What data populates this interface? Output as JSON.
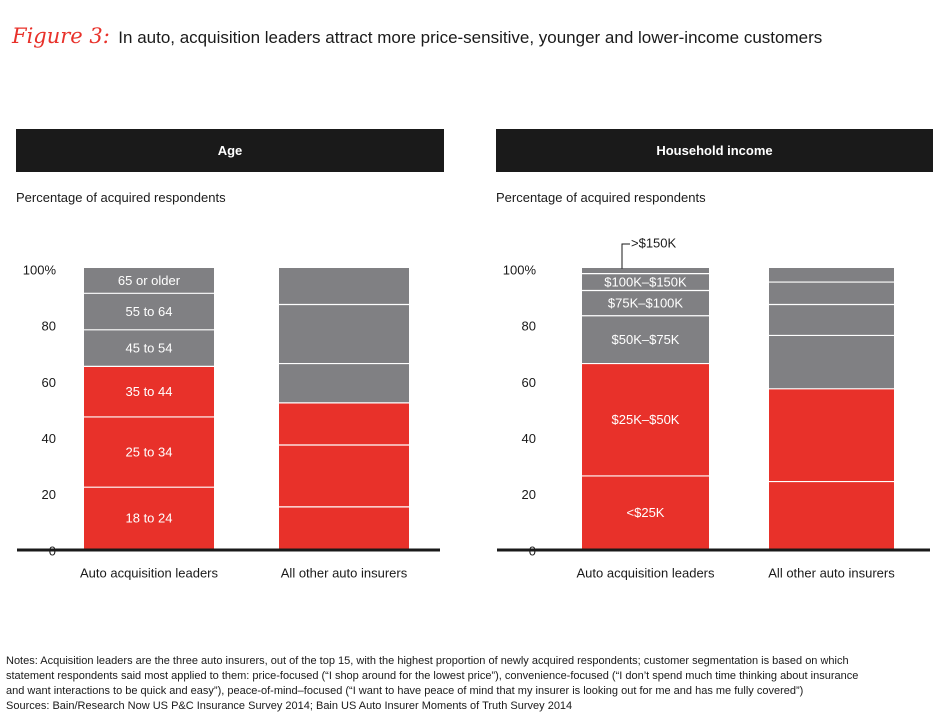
{
  "figure": {
    "label": "Figure 3:",
    "title": "In auto, acquisition leaders attract more price-sensitive, younger and lower-income customers"
  },
  "colors": {
    "red": "#e8312a",
    "gray": "#808083",
    "dark": "#1a1a1a"
  },
  "chart_data": [
    {
      "type": "bar",
      "stacked": true,
      "title": "Age",
      "ylabel": "Percentage of acquired respondents",
      "ylim": [
        0,
        100
      ],
      "yticks": [
        "0",
        "20",
        "40",
        "60",
        "80",
        "100%"
      ],
      "categories": [
        "Auto acquisition leaders",
        "All other auto insurers"
      ],
      "series": [
        {
          "name": "18 to 24",
          "color": "red",
          "values": [
            22,
            15
          ]
        },
        {
          "name": "25 to 34",
          "color": "red",
          "values": [
            25,
            22
          ]
        },
        {
          "name": "35 to 44",
          "color": "red",
          "values": [
            18,
            15
          ]
        },
        {
          "name": "45 to 54",
          "color": "gray",
          "values": [
            13,
            14
          ]
        },
        {
          "name": "55 to 64",
          "color": "gray",
          "values": [
            13,
            21
          ]
        },
        {
          "name": "65 or older",
          "color": "gray",
          "values": [
            9,
            13
          ]
        }
      ]
    },
    {
      "type": "bar",
      "stacked": true,
      "title": "Household income",
      "ylabel": "Percentage of acquired respondents",
      "ylim": [
        0,
        100
      ],
      "yticks": [
        "0",
        "20",
        "40",
        "60",
        "80",
        "100%"
      ],
      "categories": [
        "Auto acquisition leaders",
        "All other auto insurers"
      ],
      "series": [
        {
          "name": "<$25K",
          "color": "red",
          "values": [
            26,
            24
          ]
        },
        {
          "name": "$25K–$50K",
          "color": "red",
          "values": [
            40,
            33
          ]
        },
        {
          "name": "$50K–$75K",
          "color": "gray",
          "values": [
            17,
            19
          ]
        },
        {
          "name": "$75K–$100K",
          "color": "gray",
          "values": [
            9,
            11
          ]
        },
        {
          "name": "$100K–$150K",
          "color": "gray",
          "values": [
            6,
            8
          ]
        },
        {
          "name": ">$150K",
          "color": "gray",
          "values": [
            2,
            5
          ]
        }
      ]
    }
  ],
  "notes": {
    "line1": "Notes: Acquisition leaders are the three auto insurers, out of the top 15, with the highest proportion of newly acquired respondents; customer segmentation is based on which",
    "line2": "statement respondents said most applied to them: price-focused (“I shop around for the lowest price”), convenience-focused (“I don’t spend much time thinking about insurance",
    "line3": "and want interactions to be quick and easy”), peace-of-mind–focused (“I want to have peace of mind that my insurer is looking out for me and has me fully covered”)",
    "sources": "Sources: Bain/Research Now US P&C Insurance Survey 2014; Bain US Auto Insurer Moments of Truth Survey 2014"
  }
}
